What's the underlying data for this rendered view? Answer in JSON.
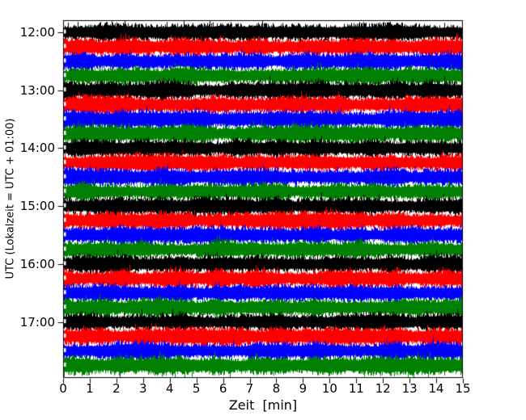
{
  "chart_data": {
    "type": "seismogram-dayplot",
    "title": "",
    "xlabel": "Zeit  [min]",
    "ylabel": "UTC (Lokalzeit = UTC + 01:00)",
    "xlim": [
      0,
      15
    ],
    "x_ticks": [
      0,
      1,
      2,
      3,
      4,
      5,
      6,
      7,
      8,
      9,
      10,
      11,
      12,
      13,
      14,
      15
    ],
    "minutes_per_row": 15,
    "grid": false,
    "legend": false,
    "y_hour_labels": [
      "12:00",
      "13:00",
      "14:00",
      "15:00",
      "16:00",
      "17:00"
    ],
    "trace_color_cycle": [
      "#000000",
      "#ff0000",
      "#0000ff",
      "#008000"
    ],
    "background_color": "#ffffff",
    "axis_color": "#000000",
    "noise_seed": 1337,
    "rows": [
      {
        "start": "12:00",
        "color": "#000000"
      },
      {
        "start": "12:15",
        "color": "#ff0000"
      },
      {
        "start": "12:30",
        "color": "#0000ff"
      },
      {
        "start": "12:45",
        "color": "#008000"
      },
      {
        "start": "13:00",
        "color": "#000000"
      },
      {
        "start": "13:15",
        "color": "#ff0000"
      },
      {
        "start": "13:30",
        "color": "#0000ff"
      },
      {
        "start": "13:45",
        "color": "#008000"
      },
      {
        "start": "14:00",
        "color": "#000000"
      },
      {
        "start": "14:15",
        "color": "#ff0000"
      },
      {
        "start": "14:30",
        "color": "#0000ff"
      },
      {
        "start": "14:45",
        "color": "#008000"
      },
      {
        "start": "15:00",
        "color": "#000000"
      },
      {
        "start": "15:15",
        "color": "#ff0000"
      },
      {
        "start": "15:30",
        "color": "#0000ff"
      },
      {
        "start": "15:45",
        "color": "#008000"
      },
      {
        "start": "16:00",
        "color": "#000000"
      },
      {
        "start": "16:15",
        "color": "#ff0000"
      },
      {
        "start": "16:30",
        "color": "#0000ff"
      },
      {
        "start": "16:45",
        "color": "#008000"
      },
      {
        "start": "17:00",
        "color": "#000000"
      },
      {
        "start": "17:15",
        "color": "#ff0000"
      },
      {
        "start": "17:30",
        "color": "#0000ff"
      },
      {
        "start": "17:45",
        "color": "#008000"
      }
    ]
  }
}
